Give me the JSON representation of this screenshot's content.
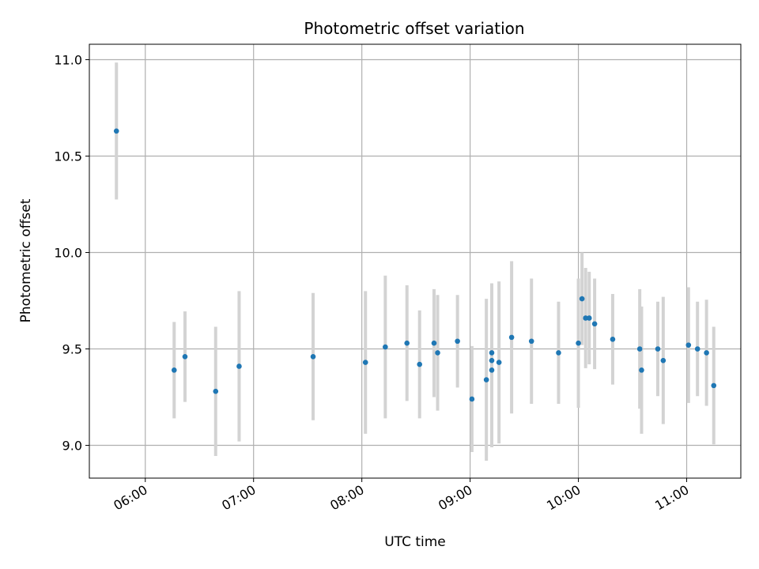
{
  "chart_data": {
    "type": "scatter",
    "title": "Photometric offset variation",
    "xlabel": "UTC time",
    "ylabel": "Photometric offset",
    "x_ticks": [
      "06:00",
      "07:00",
      "08:00",
      "09:00",
      "10:00",
      "11:00"
    ],
    "y_ticks": [
      "9.0",
      "9.5",
      "10.0",
      "10.5",
      "11.0"
    ],
    "xlim": [
      "05:29",
      "11:30"
    ],
    "ylim": [
      8.83,
      11.08
    ],
    "grid": true,
    "colors": {
      "points": "#1f77b4",
      "errorbars": "#d3d3d3",
      "grid": "#b0b0b0"
    },
    "series": [
      {
        "points": [
          {
            "x": "05:44",
            "y": 10.63,
            "err": 0.355
          },
          {
            "x": "06:16",
            "y": 9.39,
            "err": 0.25
          },
          {
            "x": "06:22",
            "y": 9.46,
            "err": 0.235
          },
          {
            "x": "06:39",
            "y": 9.28,
            "err": 0.335
          },
          {
            "x": "06:52",
            "y": 9.41,
            "err": 0.39
          },
          {
            "x": "07:33",
            "y": 9.46,
            "err": 0.33
          },
          {
            "x": "08:02",
            "y": 9.43,
            "err": 0.37
          },
          {
            "x": "08:13",
            "y": 9.51,
            "err": 0.37
          },
          {
            "x": "08:25",
            "y": 9.53,
            "err": 0.3
          },
          {
            "x": "08:32",
            "y": 9.42,
            "err": 0.28
          },
          {
            "x": "08:40",
            "y": 9.53,
            "err": 0.28
          },
          {
            "x": "08:42",
            "y": 9.48,
            "err": 0.3
          },
          {
            "x": "08:53",
            "y": 9.54,
            "err": 0.24
          },
          {
            "x": "09:01",
            "y": 9.24,
            "err": 0.275
          },
          {
            "x": "09:09",
            "y": 9.34,
            "err": 0.42
          },
          {
            "x": "09:12",
            "y": 9.48,
            "err": 0.36
          },
          {
            "x": "09:12",
            "y": 9.44,
            "err": 0.4
          },
          {
            "x": "09:12",
            "y": 9.39,
            "err": 0.4
          },
          {
            "x": "09:16",
            "y": 9.43,
            "err": 0.42
          },
          {
            "x": "09:23",
            "y": 9.56,
            "err": 0.395
          },
          {
            "x": "09:34",
            "y": 9.54,
            "err": 0.325
          },
          {
            "x": "09:49",
            "y": 9.48,
            "err": 0.265
          },
          {
            "x": "10:00",
            "y": 9.53,
            "err": 0.335
          },
          {
            "x": "10:02",
            "y": 9.76,
            "err": 0.24
          },
          {
            "x": "10:04",
            "y": 9.66,
            "err": 0.26
          },
          {
            "x": "10:06",
            "y": 9.66,
            "err": 0.24
          },
          {
            "x": "10:09",
            "y": 9.63,
            "err": 0.235
          },
          {
            "x": "10:19",
            "y": 9.55,
            "err": 0.235
          },
          {
            "x": "10:34",
            "y": 9.5,
            "err": 0.31
          },
          {
            "x": "10:35",
            "y": 9.39,
            "err": 0.33
          },
          {
            "x": "10:44",
            "y": 9.5,
            "err": 0.245
          },
          {
            "x": "10:47",
            "y": 9.44,
            "err": 0.33
          },
          {
            "x": "11:01",
            "y": 9.52,
            "err": 0.3
          },
          {
            "x": "11:06",
            "y": 9.5,
            "err": 0.245
          },
          {
            "x": "11:11",
            "y": 9.48,
            "err": 0.275
          },
          {
            "x": "11:15",
            "y": 9.31,
            "err": 0.305
          }
        ]
      }
    ]
  }
}
